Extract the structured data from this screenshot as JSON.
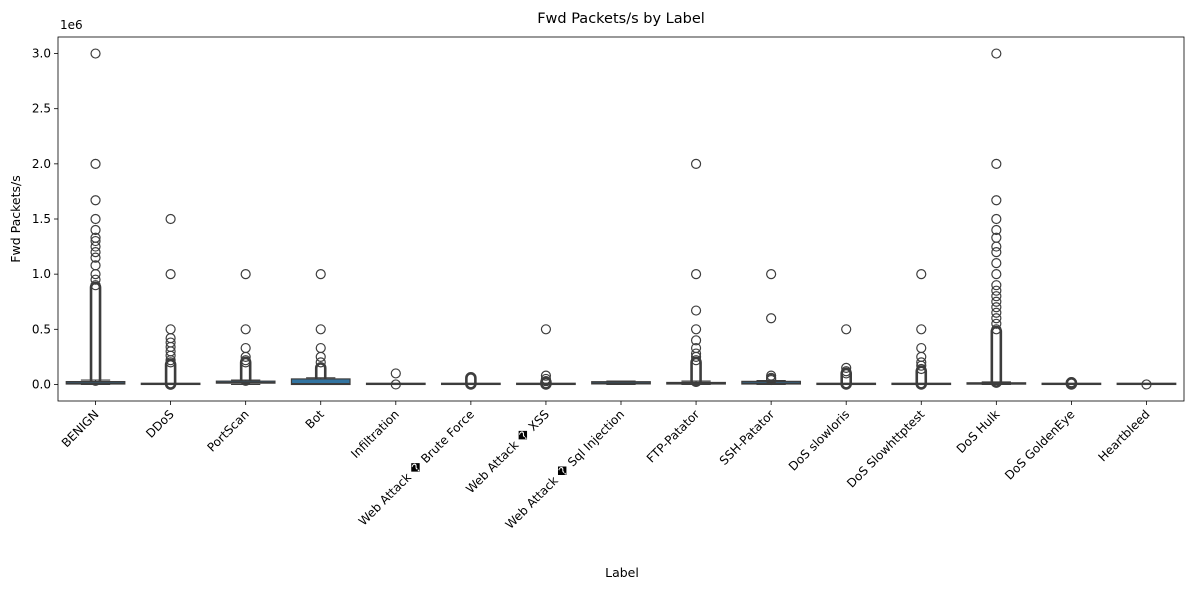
{
  "chart_data": {
    "type": "box",
    "title": "Fwd Packets/s by Label",
    "xlabel": "Label",
    "ylabel": "Fwd Packets/s",
    "y_scale_label": "1e6",
    "ylim": [
      -0.15,
      3.15
    ],
    "yticks": [
      0.0,
      0.5,
      1.0,
      1.5,
      2.0,
      2.5,
      3.0
    ],
    "ytick_labels": [
      "0.0",
      "0.5",
      "1.0",
      "1.5",
      "2.0",
      "2.5",
      "3.0"
    ],
    "box_color": "#3274a1",
    "edge_color": "#3d3d3d",
    "categories": [
      {
        "label": "BENIGN",
        "q1": 0.004,
        "median": 0.012,
        "q3": 0.026,
        "whisker_low": 0.0,
        "whisker_high": 0.04,
        "outliers": [
          3.0,
          2.0,
          1.67,
          1.5,
          1.4,
          1.33,
          1.3,
          1.25,
          1.2,
          1.15,
          1.08,
          1.0,
          0.95,
          0.9
        ],
        "outlier_band": [
          0.04,
          0.88
        ]
      },
      {
        "label": "DDoS",
        "q1": 0.0,
        "median": 0.0,
        "q3": 0.002,
        "whisker_low": 0.0,
        "whisker_high": 0.004,
        "outliers": [
          1.5,
          1.0,
          0.5,
          0.42,
          0.38,
          0.34,
          0.3,
          0.26,
          0.22,
          0.2
        ],
        "outlier_band": [
          0.004,
          0.18
        ]
      },
      {
        "label": "PortScan",
        "q1": 0.012,
        "median": 0.018,
        "q3": 0.03,
        "whisker_low": 0.0,
        "whisker_high": 0.04,
        "outliers": [
          1.0,
          0.5,
          0.33,
          0.25,
          0.22,
          0.2
        ],
        "outlier_band": [
          0.04,
          0.2
        ]
      },
      {
        "label": "Bot",
        "q1": 0.0,
        "median": 0.008,
        "q3": 0.05,
        "whisker_low": 0.0,
        "whisker_high": 0.06,
        "outliers": [
          1.0,
          0.5,
          0.33,
          0.25,
          0.2
        ],
        "outlier_band": [
          0.06,
          0.15
        ]
      },
      {
        "label": "Infiltration",
        "q1": 0.0,
        "median": 0.0,
        "q3": 0.002,
        "whisker_low": 0.0,
        "whisker_high": 0.004,
        "outliers": [
          0.1,
          0.0
        ],
        "outlier_band": []
      },
      {
        "label": "Web Attack � Brute Force",
        "q1": 0.0,
        "median": 0.0,
        "q3": 0.002,
        "whisker_low": 0.0,
        "whisker_high": 0.004,
        "outliers": [],
        "outlier_band": [
          0.005,
          0.06
        ]
      },
      {
        "label": "Web Attack � XSS",
        "q1": 0.0,
        "median": 0.0,
        "q3": 0.002,
        "whisker_low": 0.0,
        "whisker_high": 0.004,
        "outliers": [
          0.5,
          0.08,
          0.05,
          0.03
        ],
        "outlier_band": [
          0.005,
          0.02
        ]
      },
      {
        "label": "Web Attack � Sql Injection",
        "q1": 0.005,
        "median": 0.012,
        "q3": 0.025,
        "whisker_low": 0.0,
        "whisker_high": 0.03,
        "outliers": [],
        "outlier_band": []
      },
      {
        "label": "FTP-Patator",
        "q1": 0.004,
        "median": 0.01,
        "q3": 0.018,
        "whisker_low": 0.0,
        "whisker_high": 0.03,
        "outliers": [
          2.0,
          1.0,
          0.67,
          0.5,
          0.4,
          0.33,
          0.28,
          0.25,
          0.22
        ],
        "outlier_band": [
          0.03,
          0.2
        ]
      },
      {
        "label": "SSH-Patator",
        "q1": 0.004,
        "median": 0.012,
        "q3": 0.028,
        "whisker_low": 0.0,
        "whisker_high": 0.035,
        "outliers": [
          1.0,
          0.6,
          0.08,
          0.06,
          0.05,
          0.04
        ],
        "outlier_band": []
      },
      {
        "label": "DoS slowloris",
        "q1": 0.0,
        "median": 0.0,
        "q3": 0.002,
        "whisker_low": 0.0,
        "whisker_high": 0.004,
        "outliers": [
          0.5,
          0.15,
          0.12,
          0.1
        ],
        "outlier_band": [
          0.005,
          0.1
        ]
      },
      {
        "label": "DoS Slowhttptest",
        "q1": 0.0,
        "median": 0.0,
        "q3": 0.002,
        "whisker_low": 0.0,
        "whisker_high": 0.004,
        "outliers": [
          1.0,
          0.5,
          0.33,
          0.25,
          0.2,
          0.17,
          0.14
        ],
        "outlier_band": [
          0.005,
          0.12
        ]
      },
      {
        "label": "DoS Hulk",
        "q1": 0.003,
        "median": 0.008,
        "q3": 0.015,
        "whisker_low": 0.0,
        "whisker_high": 0.022,
        "outliers": [
          3.0,
          2.0,
          1.67,
          1.5,
          1.4,
          1.33,
          1.25,
          1.2,
          1.1,
          1.0,
          0.9,
          0.85,
          0.8,
          0.75,
          0.7,
          0.65,
          0.6,
          0.55,
          0.5
        ],
        "outlier_band": [
          0.022,
          0.48
        ]
      },
      {
        "label": "DoS GoldenEye",
        "q1": 0.0,
        "median": 0.0,
        "q3": 0.002,
        "whisker_low": 0.0,
        "whisker_high": 0.004,
        "outliers": [
          0.02,
          0.01
        ],
        "outlier_band": [
          0.005,
          0.015
        ]
      },
      {
        "label": "Heartbleed",
        "q1": 0.0,
        "median": 0.0,
        "q3": 0.001,
        "whisker_low": 0.0,
        "whisker_high": 0.001,
        "outliers": [
          0.0
        ],
        "outlier_band": []
      }
    ]
  }
}
